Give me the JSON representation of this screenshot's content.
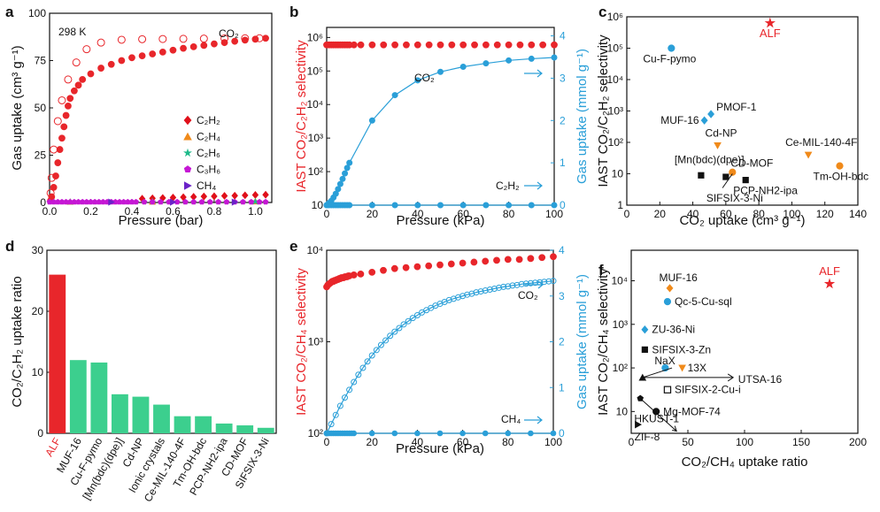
{
  "chart_data": [
    {
      "panel": "a",
      "type": "scatter",
      "annotation": "298 K",
      "xlabel": "Pressure (bar)",
      "ylabel": "Gas uptake (cm³ g⁻¹)",
      "xlim": [
        0,
        1.08
      ],
      "ylim": [
        0,
        100
      ],
      "xticks": [
        "0.0",
        "0.2",
        "0.4",
        "0.6",
        "0.8",
        "1.0"
      ],
      "yticks": [
        "0",
        "25",
        "50",
        "75",
        "100"
      ],
      "series": [
        {
          "name": "CO₂",
          "label_text": "CO₂",
          "color": "#e8262b",
          "marker": "circle-filled",
          "x": [
            0.005,
            0.01,
            0.02,
            0.03,
            0.04,
            0.05,
            0.06,
            0.07,
            0.08,
            0.09,
            0.1,
            0.12,
            0.14,
            0.16,
            0.2,
            0.25,
            0.3,
            0.35,
            0.4,
            0.45,
            0.5,
            0.55,
            0.6,
            0.65,
            0.7,
            0.75,
            0.8,
            0.85,
            0.9,
            0.95,
            1.0,
            1.05
          ],
          "y": [
            1,
            3,
            8,
            14,
            21,
            28,
            34,
            40,
            46,
            51,
            55,
            59,
            62,
            65,
            68,
            71,
            73,
            75,
            76.5,
            77.5,
            78.5,
            79.5,
            80.5,
            81.5,
            82.3,
            83,
            83.8,
            84.5,
            85.2,
            85.8,
            86.3,
            86.8
          ]
        },
        {
          "name": "CO₂ desorption",
          "color": "#e8262b",
          "marker": "circle-open",
          "x": [
            0.005,
            0.01,
            0.02,
            0.04,
            0.06,
            0.09,
            0.13,
            0.18,
            0.25,
            0.35,
            0.45,
            0.55,
            0.65,
            0.75,
            0.85,
            0.95,
            1.02
          ],
          "y": [
            5,
            13,
            28,
            43,
            54,
            65,
            74,
            81,
            84.5,
            86,
            86.3,
            86.4,
            86.5,
            86.6,
            86.7,
            86.8,
            86.8
          ]
        },
        {
          "name": "C₂H₂",
          "label_text": "C₂H₂",
          "color": "#e0101a",
          "marker": "diamond",
          "x": [
            0.45,
            0.5,
            0.55,
            0.6,
            0.65,
            0.7,
            0.75,
            0.8,
            0.85,
            0.9,
            0.95,
            1.0,
            1.05
          ],
          "y": [
            2,
            2.2,
            2.4,
            2.6,
            2.8,
            3,
            3.2,
            3.3,
            3.5,
            3.6,
            3.8,
            4,
            4.1
          ]
        },
        {
          "name": "C₂H₄",
          "label_text": "C₂H₄",
          "color": "#f08a1a",
          "marker": "triangle",
          "x": [
            0.1,
            0.5,
            1.0
          ],
          "y": [
            0.4,
            0.5,
            0.6
          ]
        },
        {
          "name": "C₂H₆",
          "label_text": "C₂H₆",
          "color": "#1fba8a",
          "marker": "star",
          "x": [
            0.1,
            0.5,
            1.0
          ],
          "y": [
            0.3,
            0.4,
            0.5
          ]
        },
        {
          "name": "C₃H₆",
          "label_text": "C₃H₆",
          "color": "#c517d4",
          "marker": "pentagon",
          "x": [
            0.0,
            0.02,
            0.04,
            0.06,
            0.08,
            0.1,
            0.12,
            0.14,
            0.16,
            0.18,
            0.2,
            0.22,
            0.24,
            0.26,
            0.28,
            0.3,
            0.32,
            0.34,
            0.36,
            0.38,
            0.4,
            0.42,
            0.46,
            0.5,
            0.54,
            0.58,
            0.62,
            0.66,
            0.7,
            0.74,
            0.78,
            0.82,
            0.86,
            0.9,
            0.94,
            0.98,
            1.02,
            1.05
          ],
          "y": [
            0.3,
            0.3,
            0.3,
            0.3,
            0.3,
            0.3,
            0.3,
            0.3,
            0.3,
            0.3,
            0.3,
            0.3,
            0.3,
            0.3,
            0.3,
            0.3,
            0.3,
            0.3,
            0.3,
            0.3,
            0.3,
            0.3,
            0.3,
            0.3,
            0.3,
            0.3,
            0.3,
            0.3,
            0.3,
            0.3,
            0.3,
            0.3,
            0.3,
            0.3,
            0.3,
            0.3,
            0.3,
            0.3
          ]
        },
        {
          "name": "CH₄",
          "label_text": "CH₄",
          "color": "#6a22c8",
          "marker": "triangle-right",
          "x": [
            0.3,
            0.6,
            0.9
          ],
          "y": [
            0.2,
            0.2,
            0.2
          ]
        }
      ]
    },
    {
      "panel": "b",
      "type": "line",
      "xlabel": "Pressure (kPa)",
      "ylabel": "IAST CO₂/C₂H₂ selectivity",
      "y2label": "Gas uptake (mmol g⁻¹)",
      "xlim": [
        0,
        100
      ],
      "ylim_log": [
        1,
        6.3
      ],
      "y2lim": [
        0,
        4.2
      ],
      "xticks": [
        "0",
        "20",
        "40",
        "60",
        "80",
        "100"
      ],
      "yticks": [
        "10",
        "10²",
        "10³",
        "10⁴",
        "10⁵",
        "10⁶"
      ],
      "y2ticks": [
        "0",
        "1",
        "2",
        "3",
        "4"
      ],
      "selectivity": {
        "name": "selectivity",
        "color": "#e8262b",
        "value_log10": 5.78,
        "x": [
          0,
          1,
          2,
          3,
          4,
          5,
          6,
          7,
          8,
          9,
          10,
          12,
          15,
          20,
          25,
          30,
          35,
          40,
          45,
          50,
          55,
          60,
          65,
          70,
          75,
          80,
          85,
          90,
          95,
          100
        ]
      },
      "co2": {
        "name": "CO₂",
        "label_text": "CO₂",
        "color": "#2a9fd8",
        "x": [
          0,
          1,
          2,
          3,
          4,
          5,
          6,
          7,
          8,
          9,
          10,
          20,
          30,
          40,
          50,
          60,
          70,
          80,
          90,
          100
        ],
        "y": [
          0,
          0.05,
          0.1,
          0.18,
          0.27,
          0.38,
          0.5,
          0.62,
          0.75,
          0.88,
          1.0,
          2.0,
          2.6,
          2.95,
          3.15,
          3.27,
          3.35,
          3.42,
          3.46,
          3.49
        ]
      },
      "c2h2": {
        "name": "C₂H₂",
        "label_text": "C₂H₂",
        "color": "#2a9fd8",
        "x": [
          0,
          1,
          2,
          3,
          4,
          5,
          6,
          7,
          8,
          9,
          10,
          20,
          30,
          40,
          50,
          60,
          70,
          80,
          90,
          100
        ],
        "y": [
          0,
          0,
          0,
          0,
          0,
          0,
          0,
          0,
          0,
          0,
          0,
          0,
          0,
          0,
          0,
          0,
          0,
          0,
          0,
          0
        ]
      }
    },
    {
      "panel": "c",
      "type": "scatter",
      "xlabel": "CO₂ uptake (cm³ g⁻¹)",
      "ylabel": "IAST CO₂/C₂H₂ selectivity",
      "xlim": [
        0,
        140
      ],
      "ylim_log": [
        0,
        6
      ],
      "xticks": [
        "0",
        "20",
        "40",
        "60",
        "80",
        "100",
        "120",
        "140"
      ],
      "yticks": [
        "1",
        "10",
        "10²",
        "10³",
        "10⁴",
        "10⁵",
        "10⁶"
      ],
      "points": [
        {
          "label": "ALF",
          "x": 86.8,
          "y_log10": 5.8,
          "color": "#e8262b",
          "marker": "star"
        },
        {
          "label": "Cu-F-pymo",
          "x": 27,
          "y_log10": 5.0,
          "color": "#2a9fd8",
          "marker": "circle"
        },
        {
          "label": "PMOF-1",
          "x": 51,
          "y_log10": 2.9,
          "color": "#2a9fd8",
          "marker": "diamond"
        },
        {
          "label": "MUF-16",
          "x": 47,
          "y_log10": 2.7,
          "color": "#2a9fd8",
          "marker": "diamond"
        },
        {
          "label": "Cd-NP",
          "x": 55,
          "y_log10": 1.9,
          "color": "#f08a1a",
          "marker": "triangle-down"
        },
        {
          "label": "Ce-MIL-140-4F",
          "x": 110,
          "y_log10": 1.6,
          "color": "#f08a1a",
          "marker": "triangle-down"
        },
        {
          "label": "Tm-OH-bdc",
          "x": 129,
          "y_log10": 1.25,
          "color": "#f08a1a",
          "marker": "circle"
        },
        {
          "label": "CD-MOF",
          "x": 64,
          "y_log10": 1.05,
          "color": "#f08a1a",
          "marker": "circle"
        },
        {
          "label": "[Mn(bdc)(dpe)]",
          "x": 45,
          "y_log10": 0.95,
          "color": "#111111",
          "marker": "square"
        },
        {
          "label": "SIFSIX-3-Ni",
          "x": 60,
          "y_log10": 0.9,
          "color": "#111111",
          "marker": "square"
        },
        {
          "label": "PCP-NH2-ipa",
          "x": 72,
          "y_log10": 0.8,
          "color": "#111111",
          "marker": "square"
        }
      ]
    },
    {
      "panel": "d",
      "type": "bar",
      "ylabel": "CO₂/C₂H₂ uptake ratio",
      "ylim": [
        0,
        30
      ],
      "yticks": [
        "0",
        "10",
        "20",
        "30"
      ],
      "categories": [
        "ALF",
        "MUF-16",
        "Cu-F-pymo",
        "[Mn(bdc)(dpe)]",
        "Cd-NP",
        "Ionic crystals",
        "Ce-MIL-140-4F",
        "Tm-OH-bdc",
        "PCP-NH2-ipa",
        "CD-MOF",
        "SIFSIX-3-Ni"
      ],
      "values": [
        26,
        12,
        11.6,
        6.4,
        6.0,
        4.7,
        2.8,
        2.8,
        1.6,
        1.3,
        0.9
      ],
      "colors": [
        "#e8262b",
        "#3ccf8e",
        "#3ccf8e",
        "#3ccf8e",
        "#3ccf8e",
        "#3ccf8e",
        "#3ccf8e",
        "#3ccf8e",
        "#3ccf8e",
        "#3ccf8e",
        "#3ccf8e"
      ]
    },
    {
      "panel": "e",
      "type": "line",
      "xlabel": "Pressure (kPa)",
      "ylabel": "IAST CO₂/CH₄ selectivity",
      "y2label": "Gas uptake (mmol g⁻¹)",
      "xlim": [
        0,
        100
      ],
      "ylim_log": [
        2,
        4
      ],
      "y2lim": [
        0,
        4
      ],
      "xticks": [
        "0",
        "20",
        "40",
        "60",
        "80",
        "100"
      ],
      "yticks": [
        "10²",
        "10³",
        "10⁴"
      ],
      "y2ticks": [
        "0",
        "1",
        "2",
        "3",
        "4"
      ],
      "selectivity": {
        "name": "selectivity",
        "color": "#e8262b",
        "x": [
          0,
          0.5,
          1,
          1.5,
          2,
          2.5,
          3,
          3.5,
          4,
          4.5,
          5,
          5.5,
          6,
          6.5,
          7,
          7.5,
          8,
          8.5,
          9,
          9.5,
          10,
          12,
          15,
          20,
          25,
          30,
          35,
          40,
          45,
          50,
          55,
          60,
          65,
          70,
          75,
          80,
          85,
          90,
          95,
          100
        ],
        "y_log10": [
          3.6,
          3.62,
          3.63,
          3.64,
          3.65,
          3.66,
          3.66,
          3.67,
          3.67,
          3.68,
          3.68,
          3.69,
          3.69,
          3.7,
          3.7,
          3.7,
          3.71,
          3.71,
          3.71,
          3.72,
          3.72,
          3.73,
          3.74,
          3.76,
          3.78,
          3.8,
          3.81,
          3.82,
          3.83,
          3.84,
          3.85,
          3.86,
          3.87,
          3.88,
          3.89,
          3.9,
          3.9,
          3.91,
          3.92,
          3.93
        ]
      },
      "co2": {
        "name": "CO₂",
        "label_text": "CO₂",
        "color": "#2a9fd8",
        "x": [
          0,
          2,
          4,
          6,
          8,
          10,
          12,
          14,
          16,
          18,
          20,
          22,
          24,
          26,
          28,
          30,
          32,
          34,
          36,
          38,
          40,
          42,
          44,
          46,
          48,
          50,
          52,
          54,
          56,
          58,
          60,
          62,
          64,
          66,
          68,
          70,
          72,
          74,
          76,
          78,
          80,
          82,
          84,
          86,
          88,
          90,
          92,
          94,
          96,
          98,
          100
        ],
        "y": [
          0,
          0.2,
          0.4,
          0.6,
          0.78,
          0.95,
          1.12,
          1.28,
          1.43,
          1.57,
          1.7,
          1.82,
          1.93,
          2.03,
          2.13,
          2.22,
          2.3,
          2.38,
          2.45,
          2.52,
          2.58,
          2.64,
          2.69,
          2.74,
          2.79,
          2.83,
          2.87,
          2.91,
          2.94,
          2.97,
          3.0,
          3.03,
          3.05,
          3.08,
          3.1,
          3.12,
          3.14,
          3.16,
          3.18,
          3.2,
          3.21,
          3.23,
          3.24,
          3.26,
          3.27,
          3.28,
          3.29,
          3.3,
          3.31,
          3.32,
          3.33
        ]
      },
      "ch4": {
        "name": "CH₄",
        "label_text": "CH₄",
        "color": "#2a9fd8",
        "x": [
          0,
          1,
          2,
          3,
          4,
          5,
          6,
          7,
          8,
          9,
          10,
          11,
          12,
          20,
          30,
          40,
          50,
          60,
          70,
          80,
          90,
          100
        ],
        "y": [
          0,
          0,
          0,
          0,
          0,
          0,
          0,
          0,
          0,
          0,
          0,
          0,
          0,
          0,
          0,
          0,
          0,
          0,
          0,
          0,
          0,
          0
        ]
      }
    },
    {
      "panel": "f",
      "type": "scatter",
      "xlabel": "CO₂/CH₄ uptake ratio",
      "ylabel": "IAST CO₂/CH₄ selectivity",
      "xlim": [
        0,
        200
      ],
      "ylim_log": [
        0.5,
        4.7
      ],
      "xticks": [
        "0",
        "50",
        "100",
        "150",
        "200"
      ],
      "yticks": [
        "10",
        "10²",
        "10³",
        "10⁴"
      ],
      "points": [
        {
          "label": "ALF",
          "x": 175,
          "y_log10": 3.93,
          "color": "#e8262b",
          "marker": "star"
        },
        {
          "label": "MUF-16",
          "x": 34,
          "y_log10": 3.83,
          "color": "#f08a1a",
          "marker": "diamond"
        },
        {
          "label": "Qc-5-Cu-sql",
          "x": 32,
          "y_log10": 3.52,
          "color": "#2a9fd8",
          "marker": "circle"
        },
        {
          "label": "ZU-36-Ni",
          "x": 12,
          "y_log10": 2.88,
          "color": "#2a9fd8",
          "marker": "diamond"
        },
        {
          "label": "SIFSIX-3-Zn",
          "x": 12,
          "y_log10": 2.42,
          "color": "#111111",
          "marker": "square"
        },
        {
          "label": "NaX",
          "x": 30,
          "y_log10": 2.0,
          "color": "#2a9fd8",
          "marker": "circle"
        },
        {
          "label": "13X",
          "x": 45,
          "y_log10": 2.0,
          "color": "#f08a1a",
          "marker": "triangle-down"
        },
        {
          "label": "UTSA-16",
          "x": 10,
          "y_log10": 1.78,
          "color": "#111111",
          "marker": "triangle-up"
        },
        {
          "label": "SIFSIX-2-Cu-i",
          "x": 32,
          "y_log10": 1.5,
          "color": "#111111",
          "marker": "square-open"
        },
        {
          "label": "",
          "x": 8,
          "y_log10": 1.3,
          "color": "#111111",
          "marker": "pentagon"
        },
        {
          "label": "Mg-MOF-74",
          "x": 22,
          "y_log10": 1.0,
          "color": "#111111",
          "marker": "circle"
        },
        {
          "label": "ZIF-8",
          "x": 6,
          "y_log10": 0.7,
          "color": "#111111",
          "marker": "triangle-right"
        },
        {
          "label": "HKUST-1",
          "x": 12,
          "y_log10": 1.2,
          "color": "#111111",
          "marker": "none"
        }
      ]
    }
  ],
  "panel_letters": [
    "a",
    "b",
    "c",
    "d",
    "e",
    "f"
  ]
}
